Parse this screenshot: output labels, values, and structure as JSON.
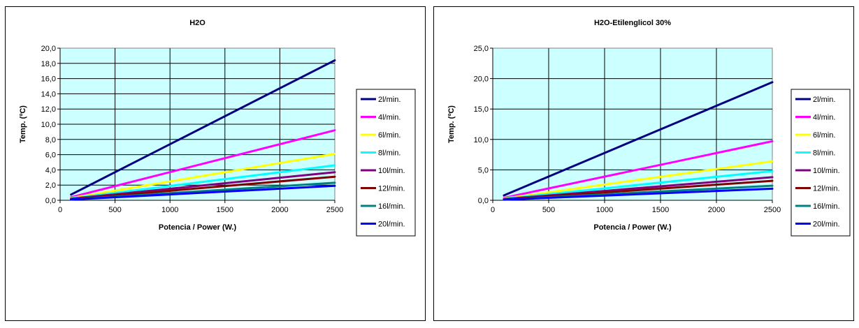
{
  "chart_data": [
    {
      "type": "line",
      "title": "H2O",
      "xlabel": "Potencia / Power (W.)",
      "ylabel": "Temp. (ºC)",
      "xlim": [
        0,
        2500
      ],
      "ylim": [
        0,
        20
      ],
      "x_ticks": [
        0,
        500,
        1000,
        1500,
        2000,
        2500
      ],
      "x_tick_labels": [
        "0",
        "500",
        "1000",
        "1500",
        "2000",
        "2500"
      ],
      "y_ticks": [
        0,
        2,
        4,
        6,
        8,
        10,
        12,
        14,
        16,
        18,
        20
      ],
      "y_tick_labels": [
        "0,0",
        "2,0",
        "4,0",
        "6,0",
        "8,0",
        "10,0",
        "12,0",
        "14,0",
        "16,0",
        "18,0",
        "20,0"
      ],
      "grid": true,
      "legend_position": "right",
      "plot_background": "#ccffff",
      "x": [
        100,
        2500
      ],
      "series": [
        {
          "name": "2l/min.",
          "color": "#000080",
          "values": [
            0.75,
            18.4
          ]
        },
        {
          "name": "4l/min.",
          "color": "#ff00ff",
          "values": [
            0.4,
            9.2
          ]
        },
        {
          "name": "6l/min.",
          "color": "#ffff00",
          "values": [
            0.3,
            6.1
          ]
        },
        {
          "name": "8l/min.",
          "color": "#00ffff",
          "values": [
            0.25,
            4.6
          ]
        },
        {
          "name": "10l/min.",
          "color": "#800080",
          "values": [
            0.2,
            3.7
          ]
        },
        {
          "name": "12l/min.",
          "color": "#800000",
          "values": [
            0.15,
            3.1
          ]
        },
        {
          "name": "16l/min.",
          "color": "#008080",
          "values": [
            0.12,
            2.3
          ]
        },
        {
          "name": "20l/min.",
          "color": "#0000ff",
          "values": [
            0.1,
            1.9
          ]
        }
      ]
    },
    {
      "type": "line",
      "title": "H2O-Etilenglicol 30%",
      "xlabel": "Potencia / Power (W.)",
      "ylabel": "Temp. (ºC)",
      "xlim": [
        0,
        2500
      ],
      "ylim": [
        0,
        25
      ],
      "x_ticks": [
        0,
        500,
        1000,
        1500,
        2000,
        2500
      ],
      "x_tick_labels": [
        "0",
        "500",
        "1000",
        "1500",
        "2000",
        "2500"
      ],
      "y_ticks": [
        0,
        5,
        10,
        15,
        20,
        25
      ],
      "y_tick_labels": [
        "0,0",
        "5,0",
        "10,0",
        "15,0",
        "20,0",
        "25,0"
      ],
      "grid": true,
      "legend_position": "right",
      "plot_background": "#ccffff",
      "x": [
        100,
        2500
      ],
      "series": [
        {
          "name": "2l/min.",
          "color": "#000080",
          "values": [
            0.8,
            19.4
          ]
        },
        {
          "name": "4l/min.",
          "color": "#ff00ff",
          "values": [
            0.4,
            9.7
          ]
        },
        {
          "name": "6l/min.",
          "color": "#ffff00",
          "values": [
            0.3,
            6.4
          ]
        },
        {
          "name": "8l/min.",
          "color": "#00ffff",
          "values": [
            0.25,
            4.8
          ]
        },
        {
          "name": "10l/min.",
          "color": "#800080",
          "values": [
            0.2,
            3.8
          ]
        },
        {
          "name": "12l/min.",
          "color": "#800000",
          "values": [
            0.15,
            3.2
          ]
        },
        {
          "name": "16l/min.",
          "color": "#008080",
          "values": [
            0.12,
            2.4
          ]
        },
        {
          "name": "20l/min.",
          "color": "#0000ff",
          "values": [
            0.1,
            1.9
          ]
        }
      ]
    }
  ]
}
